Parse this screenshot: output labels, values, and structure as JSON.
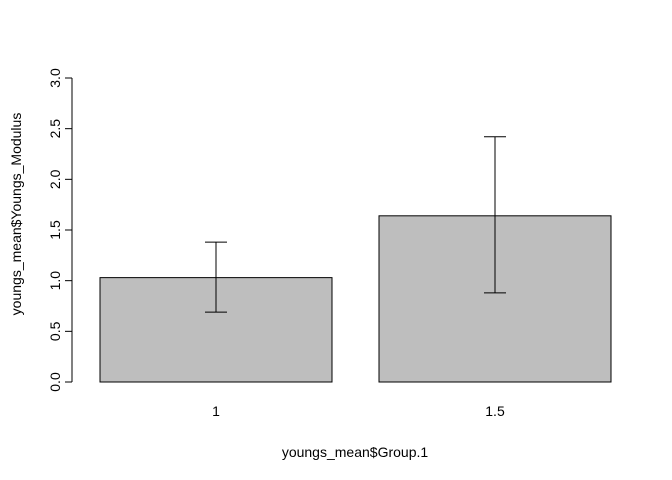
{
  "chart_data": {
    "type": "bar",
    "categories": [
      "1",
      "1.5"
    ],
    "values": [
      1.03,
      1.64
    ],
    "error_low": [
      0.69,
      0.88
    ],
    "error_high": [
      1.38,
      2.42
    ],
    "xlabel": "youngs_mean$Group.1",
    "ylabel": "youngs_mean$Youngs_Modulus",
    "ylim": [
      0,
      3
    ],
    "yticks": [
      "0.0",
      "0.5",
      "1.0",
      "1.5",
      "2.0",
      "2.5",
      "3.0"
    ],
    "grid": false,
    "bar_color": "#bebebe",
    "edge_color": "#000000"
  }
}
